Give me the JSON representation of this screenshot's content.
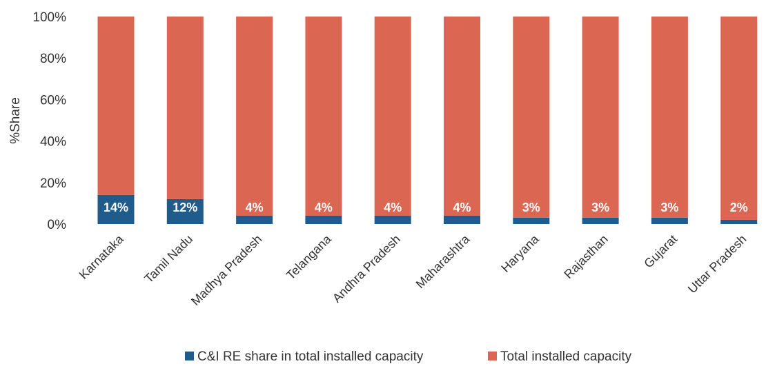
{
  "chart_data": {
    "type": "bar",
    "stacked": true,
    "ylabel": "%Share",
    "ylim": [
      0,
      100
    ],
    "yticks": [
      "0%",
      "20%",
      "40%",
      "60%",
      "80%",
      "100%"
    ],
    "categories": [
      "Karnataka",
      "Tamil Nadu",
      "Madhya Pradesh",
      "Telangana",
      "Andhra Pradesh",
      "Maharashtra",
      "Haryana",
      "Rajasthan",
      "Gujarat",
      "Uttar Pradesh"
    ],
    "series": [
      {
        "name": "C&I RE share in total installed capacity",
        "color": "#1F5C8C",
        "values": [
          14,
          12,
          4,
          4,
          4,
          4,
          3,
          3,
          3,
          2
        ],
        "labels": [
          "14%",
          "12%",
          "4%",
          "4%",
          "4%",
          "4%",
          "3%",
          "3%",
          "3%",
          "2%"
        ]
      },
      {
        "name": "Total installed capacity",
        "color": "#DB6753",
        "values": [
          86,
          88,
          96,
          96,
          96,
          96,
          97,
          97,
          97,
          98
        ]
      }
    ],
    "grid": false,
    "legend": "bottom"
  }
}
